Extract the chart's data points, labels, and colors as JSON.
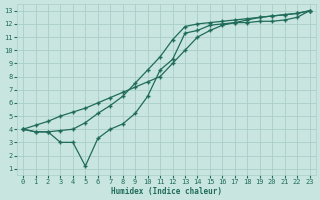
{
  "bg_color": "#c8e6df",
  "grid_color": "#aacfc8",
  "line_color": "#206b5a",
  "xlabel": "Humidex (Indice chaleur)",
  "xlim": [
    -0.5,
    23.5
  ],
  "ylim": [
    0.5,
    13.5
  ],
  "xticks": [
    0,
    1,
    2,
    3,
    4,
    5,
    6,
    7,
    8,
    9,
    10,
    11,
    12,
    13,
    14,
    15,
    16,
    17,
    18,
    19,
    20,
    21,
    22,
    23
  ],
  "yticks": [
    1,
    2,
    3,
    4,
    5,
    6,
    7,
    8,
    9,
    10,
    11,
    12,
    13
  ],
  "line1_x": [
    0,
    1,
    2,
    3,
    4,
    5,
    6,
    7,
    8,
    9,
    10,
    11,
    12,
    13,
    14,
    15,
    16,
    17,
    18,
    19,
    20,
    21,
    22,
    23
  ],
  "line1_y": [
    4.0,
    3.8,
    3.8,
    3.0,
    3.0,
    1.2,
    3.3,
    4.0,
    4.4,
    5.2,
    6.5,
    8.5,
    9.3,
    11.3,
    11.5,
    11.9,
    12.0,
    12.1,
    12.1,
    12.2,
    12.2,
    12.3,
    12.5,
    13.0
  ],
  "line2_x": [
    0,
    1,
    2,
    3,
    4,
    5,
    6,
    7,
    8,
    9,
    10,
    11,
    12,
    13,
    14,
    15,
    16,
    17,
    18,
    19,
    20,
    21,
    22,
    23
  ],
  "line2_y": [
    4.0,
    3.8,
    3.8,
    3.9,
    4.0,
    4.5,
    5.2,
    5.8,
    6.5,
    7.5,
    8.5,
    9.5,
    10.8,
    11.8,
    12.0,
    12.1,
    12.2,
    12.3,
    12.4,
    12.5,
    12.6,
    12.7,
    12.8,
    13.0
  ],
  "line3_x": [
    0,
    1,
    2,
    3,
    4,
    5,
    6,
    7,
    8,
    9,
    10,
    11,
    12,
    13,
    14,
    15,
    16,
    17,
    18,
    19,
    20,
    21,
    22,
    23
  ],
  "line3_y": [
    4.0,
    4.3,
    4.6,
    5.0,
    5.3,
    5.6,
    6.0,
    6.4,
    6.8,
    7.2,
    7.6,
    8.0,
    9.0,
    10.0,
    11.0,
    11.5,
    11.9,
    12.1,
    12.3,
    12.5,
    12.6,
    12.7,
    12.8,
    13.0
  ]
}
